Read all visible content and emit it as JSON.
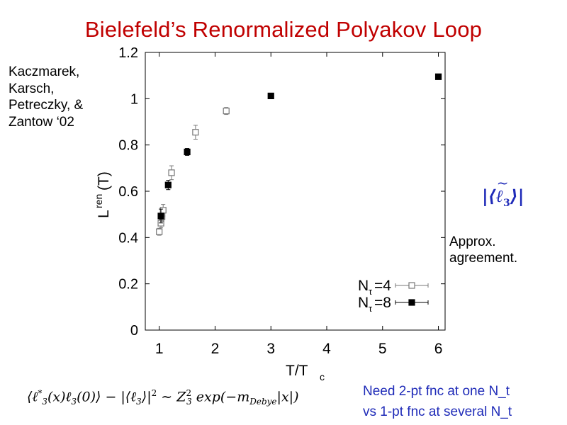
{
  "slide": {
    "title": "Bielefeld’s Renormalized Polyakov Loop",
    "authors": [
      "Kaczmarek,",
      "Karsch,",
      "Petreczky, &",
      "Zantow ‘02"
    ],
    "agreement": [
      "Approx.",
      "agreement."
    ],
    "need": [
      "Need 2-pt fnc at one N_t",
      "vs 1-pt fnc at several N_t"
    ],
    "formula": {
      "lhs": "⟨ℓ",
      "star": "*",
      "sub3": "3",
      "middle": "(x)ℓ",
      "zero": "(0)⟩ − |⟨ℓ",
      "abs_end": "⟩|",
      "sq": "2",
      "sim": " ∼ Z",
      "exp": " exp(−m",
      "debye": "Debye",
      "tail": "|x|)"
    },
    "ell3": {
      "left": "|⟨",
      "ell": "ℓ",
      "sub": "3",
      "right": "⟩|"
    },
    "colors": {
      "title": "#c00000",
      "blue_text": "#1f2bb8",
      "series_open": "#777777",
      "series_filled": "#000000"
    }
  },
  "chart_data": {
    "type": "scatter",
    "xlabel": "T/T",
    "xlabel_sub": "c",
    "ylabel": "L",
    "ylabel_sup": "ren",
    "ylabel_tail": "(T)",
    "xlim": [
      0.75,
      6.12
    ],
    "ylim": [
      0,
      1.2
    ],
    "xticks": [
      "1",
      "2",
      "3",
      "4",
      "5",
      "6"
    ],
    "yticks": [
      "0",
      "0.2",
      "0.4",
      "0.6",
      "0.8",
      "1",
      "1.2"
    ],
    "grid": false,
    "legend_position": "bottom-right",
    "series": [
      {
        "name": "N",
        "name_sub": "τ",
        "name_tail": "=4",
        "marker": "open-square",
        "x": [
          1.0,
          1.03,
          1.05,
          1.07,
          1.22,
          1.65,
          2.2
        ],
        "y": [
          0.425,
          0.462,
          0.49,
          0.518,
          0.68,
          0.855,
          0.947
        ],
        "err": [
          0.015,
          0.02,
          0.02,
          0.025,
          0.03,
          0.03,
          0.015
        ]
      },
      {
        "name": "N",
        "name_sub": "τ",
        "name_tail": "=8",
        "marker": "filled-square",
        "x": [
          1.03,
          1.16,
          1.5,
          3.0,
          6.0
        ],
        "y": [
          0.493,
          0.627,
          0.77,
          1.012,
          1.095
        ],
        "err": [
          0.03,
          0.02,
          0.015,
          0.01,
          0.01
        ]
      }
    ]
  }
}
